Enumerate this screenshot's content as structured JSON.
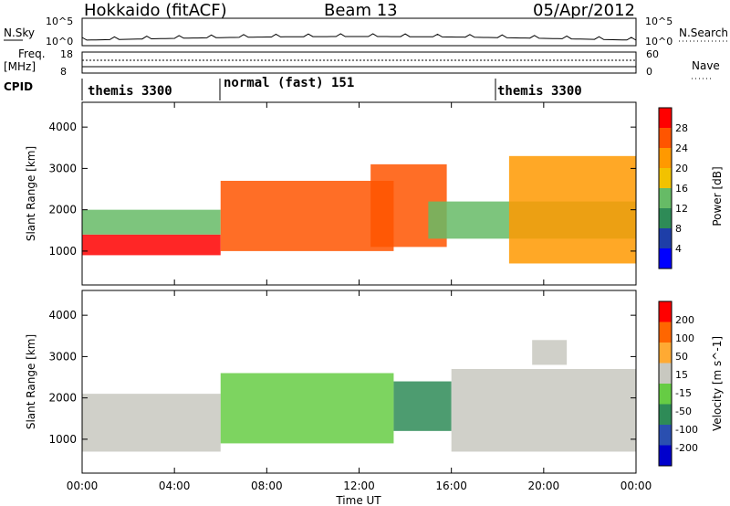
{
  "header": {
    "station": "Hokkaido (fitACF)",
    "beam": "Beam 13",
    "date": "05/Apr/2012"
  },
  "noise_panel": {
    "left_label": "N.Sky",
    "left_ticks": [
      "10^5",
      "10^0"
    ],
    "right_ticks": [
      "10^5",
      "10^0"
    ],
    "right_label": "N.Search"
  },
  "freq_panel": {
    "left_label_top": "Freq.",
    "left_label_bottom": "[MHz]",
    "left_ticks": [
      "18",
      "8"
    ],
    "right_ticks": [
      "60",
      "0"
    ],
    "right_label": "Nave"
  },
  "cpid_panel": {
    "label": "CPID",
    "segments": [
      {
        "label": "themis 3300",
        "start_hour": 0
      },
      {
        "label": "normal (fast) 151",
        "start_hour": 6
      },
      {
        "label": "themis 3300",
        "start_hour": 18
      }
    ]
  },
  "x_axis": {
    "title": "Time UT",
    "ticks": [
      "00:00",
      "04:00",
      "08:00",
      "12:00",
      "16:00",
      "20:00",
      "00:00"
    ]
  },
  "power_panel": {
    "ylabel": "Slant Range [km]",
    "yticks": [
      "1000",
      "2000",
      "3000",
      "4000"
    ],
    "colorbar_label": "Power [dB]",
    "colorbar_ticks": [
      "28",
      "24",
      "20",
      "16",
      "12",
      "8",
      "4"
    ],
    "colors": [
      "#0000ff",
      "#1e3ea8",
      "#2e8b57",
      "#66bb66",
      "#f2c200",
      "#ff9900",
      "#ff5500",
      "#ff0000"
    ]
  },
  "velocity_panel": {
    "ylabel": "Slant Range [km]",
    "yticks": [
      "1000",
      "2000",
      "3000",
      "4000"
    ],
    "colorbar_label": "Velocity [m s^-1]",
    "colorbar_ticks": [
      "200",
      "100",
      "50",
      "15",
      "-15",
      "-50",
      "-100",
      "-200"
    ],
    "colors": [
      "#0000cc",
      "#2a4fb0",
      "#2e8b57",
      "#66cc44",
      "#c8c8c0",
      "#ffaa33",
      "#ff6600",
      "#ff0000"
    ]
  },
  "chart_data": [
    {
      "type": "heatmap",
      "title": "Power [dB]",
      "xlabel": "Time UT",
      "ylabel": "Slant Range [km]",
      "xlim": [
        0,
        24
      ],
      "ylim": [
        180,
        4600
      ],
      "colorbar_range": [
        0,
        32
      ],
      "features": [
        {
          "t0": 0.0,
          "t1": 6.0,
          "r0": 900,
          "r1": 1400,
          "level": 28
        },
        {
          "t0": 0.0,
          "t1": 6.0,
          "r0": 1400,
          "r1": 2000,
          "level": 14
        },
        {
          "t0": 6.0,
          "t1": 13.5,
          "r0": 1000,
          "r1": 2700,
          "level": 24
        },
        {
          "t0": 12.5,
          "t1": 15.8,
          "r0": 1100,
          "r1": 3100,
          "level": 26
        },
        {
          "t0": 15.0,
          "t1": 24.0,
          "r0": 1300,
          "r1": 2200,
          "level": 12
        },
        {
          "t0": 18.5,
          "t1": 24.0,
          "r0": 700,
          "r1": 3300,
          "level": 22
        }
      ]
    },
    {
      "type": "heatmap",
      "title": "Velocity [m s^-1]",
      "xlabel": "Time UT",
      "ylabel": "Slant Range [km]",
      "xlim": [
        0,
        24
      ],
      "ylim": [
        180,
        4600
      ],
      "colorbar_range": [
        -200,
        200
      ],
      "features": [
        {
          "t0": 0.0,
          "t1": 6.0,
          "r0": 700,
          "r1": 2100,
          "level": 0
        },
        {
          "t0": 6.0,
          "t1": 13.5,
          "r0": 900,
          "r1": 2600,
          "level": -40
        },
        {
          "t0": 13.5,
          "t1": 16.0,
          "r0": 1200,
          "r1": 2400,
          "level": -60
        },
        {
          "t0": 16.0,
          "t1": 24.0,
          "r0": 700,
          "r1": 2700,
          "level": 0
        },
        {
          "t0": 19.5,
          "t1": 21.0,
          "r0": 2800,
          "r1": 3400,
          "level": 40
        }
      ]
    }
  ]
}
